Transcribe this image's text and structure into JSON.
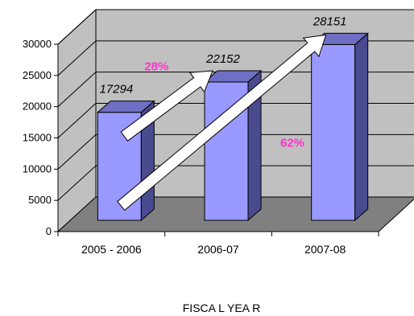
{
  "chart_data": {
    "type": "bar",
    "title": "",
    "xlabel": "FISCA L YEA R",
    "ylabel": "",
    "ylim": [
      0,
      30000
    ],
    "yticks": [
      "0",
      "5000",
      "10000",
      "15000",
      "20000",
      "25000",
      "30000"
    ],
    "categories": [
      "2005 - 2006",
      "2006-07",
      "2007-08"
    ],
    "values": [
      17294,
      22152,
      28151
    ],
    "data_labels": [
      "17294",
      "22152",
      "28151"
    ],
    "annotations": [
      {
        "text": "28%",
        "from": "2005 - 2006",
        "to": "2006-07"
      },
      {
        "text": "62%",
        "from": "2005 - 2006",
        "to": "2007-08"
      }
    ],
    "grid": true,
    "three_d": true,
    "colors": {
      "bar_front": "#9999ff",
      "bar_side": "#4a4a8f",
      "bar_top": "#6f6fc4",
      "wall": "#c0c0c0",
      "floor": "#808080",
      "annotation_text": "#ff33cc",
      "arrow_fill": "#ffffff"
    }
  }
}
